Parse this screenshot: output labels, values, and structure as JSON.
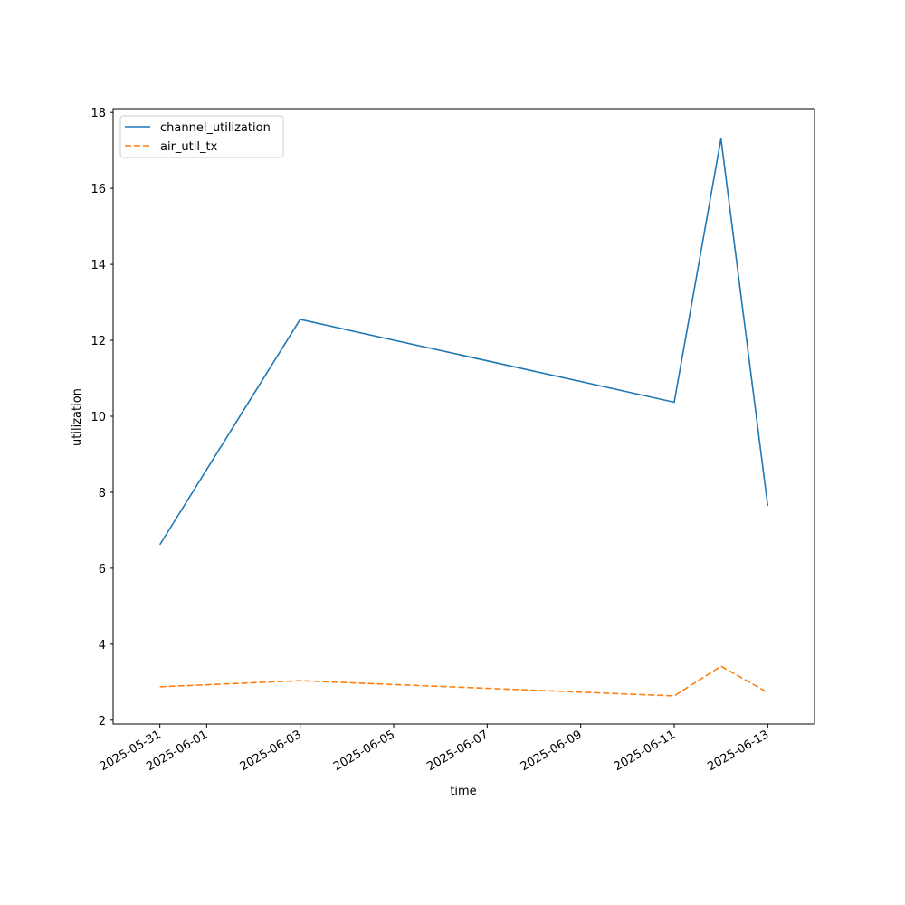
{
  "chart_data": {
    "type": "line",
    "x_label": "time",
    "y_label": "utilization",
    "x": [
      "2025-05-31",
      "2025-06-03",
      "2025-06-11",
      "2025-06-12",
      "2025-06-13"
    ],
    "series": [
      {
        "name": "channel_utilization",
        "color": "#1f77b4",
        "linestyle": "solid",
        "values": [
          6.62,
          12.55,
          10.37,
          17.31,
          7.64
        ]
      },
      {
        "name": "air_util_tx",
        "color": "#ff7f0e",
        "linestyle": "dashed",
        "values": [
          2.88,
          3.04,
          2.64,
          3.42,
          2.73
        ]
      }
    ],
    "xlim": [
      "2025-05-30",
      "2025-06-14"
    ],
    "xticks": [
      "2025-05-31",
      "2025-06-01",
      "2025-06-03",
      "2025-06-05",
      "2025-06-07",
      "2025-06-09",
      "2025-06-11",
      "2025-06-13"
    ],
    "ylim": [
      1.9,
      18.1
    ],
    "yticks": [
      2,
      4,
      6,
      8,
      10,
      12,
      14,
      16,
      18
    ],
    "legend": "upper left",
    "grid": false
  }
}
